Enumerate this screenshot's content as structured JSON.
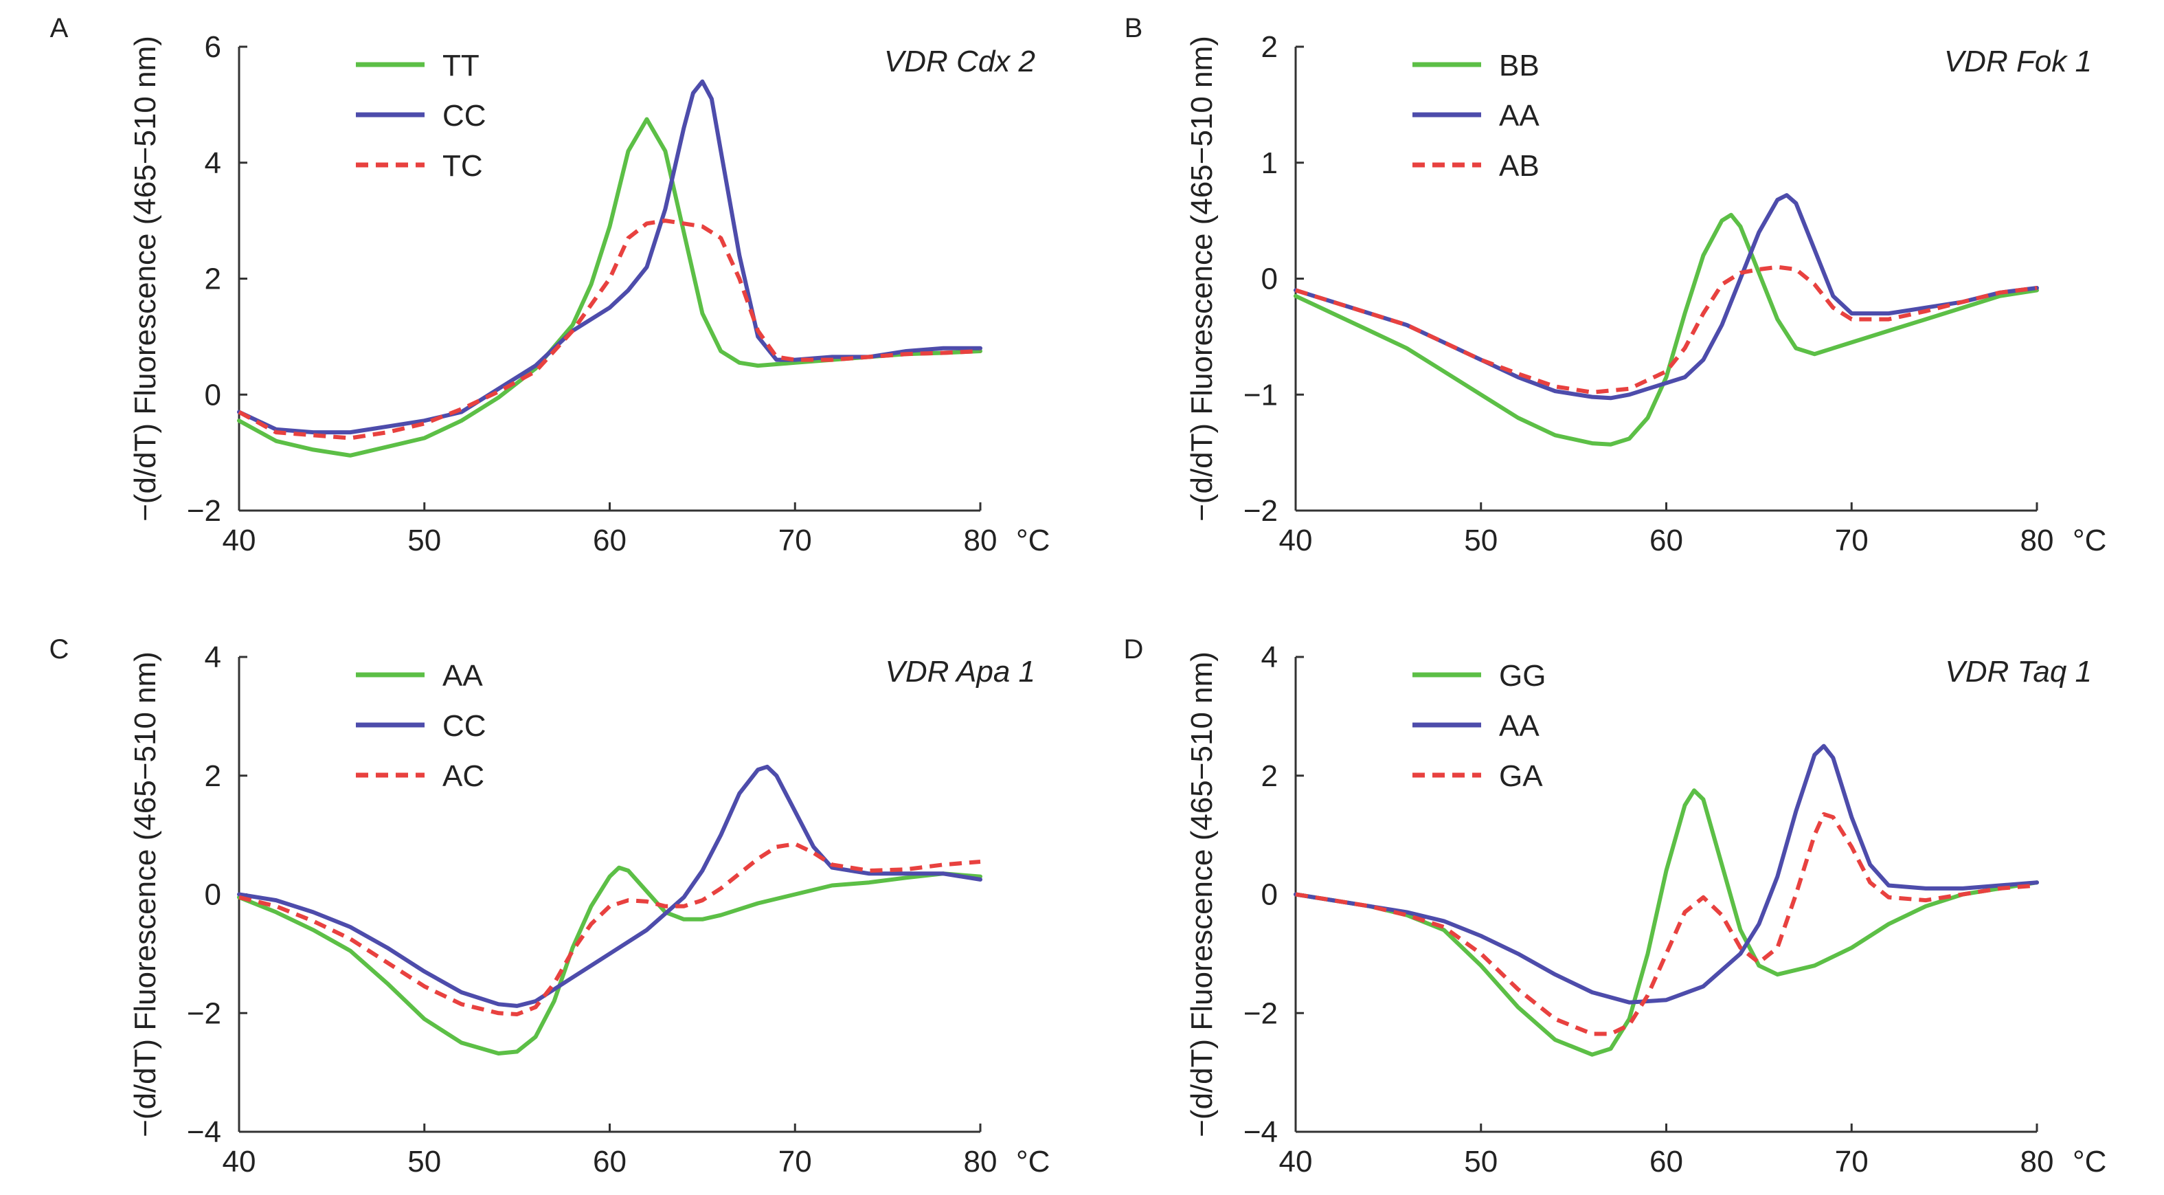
{
  "colors": {
    "green": "#5cbf46",
    "blue": "#4d4cab",
    "red": "#e8413f",
    "axis": "#333333"
  },
  "chart_data": [
    {
      "panel": "A",
      "type": "line",
      "annotation": "VDR Cdx 2",
      "xlabel": "°C",
      "ylabel": "−(d/dT) Fluorescence (465−510 nm)",
      "xlim": [
        40,
        80
      ],
      "ylim": [
        -2,
        6
      ],
      "xticks": [
        40,
        50,
        60,
        70,
        80
      ],
      "yticks": [
        -2,
        0,
        2,
        4,
        6
      ],
      "legend_position": "top-left",
      "series": [
        {
          "name": "TT",
          "color": "green",
          "dashed": false,
          "x": [
            40,
            42,
            44,
            46,
            48,
            50,
            52,
            54,
            56,
            58,
            59,
            60,
            61,
            62,
            63,
            64,
            65,
            66,
            67,
            68,
            70,
            72,
            74,
            76,
            78,
            80
          ],
          "y": [
            -0.45,
            -0.8,
            -0.95,
            -1.05,
            -0.9,
            -0.75,
            -0.45,
            -0.05,
            0.45,
            1.2,
            1.9,
            2.9,
            4.2,
            4.75,
            4.2,
            2.8,
            1.4,
            0.75,
            0.55,
            0.5,
            0.55,
            0.6,
            0.65,
            0.7,
            0.72,
            0.75
          ]
        },
        {
          "name": "CC",
          "color": "blue",
          "dashed": false,
          "x": [
            40,
            42,
            44,
            46,
            48,
            50,
            52,
            54,
            56,
            58,
            60,
            61,
            62,
            63,
            64,
            64.5,
            65,
            65.5,
            66,
            67,
            68,
            69,
            70,
            72,
            74,
            76,
            78,
            80
          ],
          "y": [
            -0.3,
            -0.6,
            -0.65,
            -0.65,
            -0.55,
            -0.45,
            -0.3,
            0.1,
            0.5,
            1.1,
            1.5,
            1.8,
            2.2,
            3.2,
            4.6,
            5.2,
            5.4,
            5.1,
            4.2,
            2.4,
            1.0,
            0.6,
            0.6,
            0.65,
            0.65,
            0.75,
            0.8,
            0.8
          ]
        },
        {
          "name": "TC",
          "color": "red",
          "dashed": true,
          "x": [
            40,
            42,
            44,
            46,
            48,
            50,
            52,
            54,
            56,
            58,
            60,
            61,
            62,
            63,
            64,
            65,
            66,
            67,
            68,
            69,
            70,
            72,
            74,
            76,
            78,
            80
          ],
          "y": [
            -0.3,
            -0.65,
            -0.7,
            -0.75,
            -0.65,
            -0.5,
            -0.25,
            0.05,
            0.4,
            1.1,
            2.0,
            2.7,
            2.95,
            3.0,
            2.95,
            2.9,
            2.7,
            2.0,
            1.1,
            0.65,
            0.6,
            0.6,
            0.65,
            0.7,
            0.72,
            0.75
          ]
        }
      ]
    },
    {
      "panel": "B",
      "type": "line",
      "annotation": "VDR Fok 1",
      "xlabel": "°C",
      "ylabel": "−(d/dT) Fluorescence (465−510 nm)",
      "xlim": [
        40,
        80
      ],
      "ylim": [
        -2,
        2
      ],
      "xticks": [
        40,
        50,
        60,
        70,
        80
      ],
      "yticks": [
        -2,
        -1,
        0,
        1,
        2
      ],
      "legend_position": "top-left",
      "series": [
        {
          "name": "BB",
          "color": "green",
          "dashed": false,
          "x": [
            40,
            42,
            44,
            46,
            48,
            50,
            52,
            54,
            56,
            57,
            58,
            59,
            60,
            61,
            62,
            63,
            63.5,
            64,
            65,
            66,
            67,
            68,
            70,
            72,
            74,
            76,
            78,
            80
          ],
          "y": [
            -0.15,
            -0.3,
            -0.45,
            -0.6,
            -0.8,
            -1.0,
            -1.2,
            -1.35,
            -1.42,
            -1.43,
            -1.38,
            -1.2,
            -0.85,
            -0.3,
            0.2,
            0.5,
            0.55,
            0.45,
            0.05,
            -0.35,
            -0.6,
            -0.65,
            -0.55,
            -0.45,
            -0.35,
            -0.25,
            -0.15,
            -0.1
          ]
        },
        {
          "name": "AA",
          "color": "blue",
          "dashed": false,
          "x": [
            40,
            42,
            44,
            46,
            48,
            50,
            52,
            54,
            56,
            57,
            58,
            59,
            60,
            61,
            62,
            63,
            64,
            65,
            66,
            66.5,
            67,
            68,
            69,
            70,
            72,
            74,
            76,
            78,
            80
          ],
          "y": [
            -0.1,
            -0.2,
            -0.3,
            -0.4,
            -0.55,
            -0.7,
            -0.85,
            -0.97,
            -1.02,
            -1.03,
            -1.0,
            -0.95,
            -0.9,
            -0.85,
            -0.7,
            -0.4,
            0.0,
            0.4,
            0.68,
            0.72,
            0.65,
            0.25,
            -0.15,
            -0.3,
            -0.3,
            -0.25,
            -0.2,
            -0.12,
            -0.08
          ]
        },
        {
          "name": "AB",
          "color": "red",
          "dashed": true,
          "x": [
            40,
            42,
            44,
            46,
            48,
            50,
            52,
            54,
            56,
            58,
            60,
            61,
            62,
            63,
            64,
            65,
            66,
            67,
            68,
            69,
            70,
            72,
            74,
            76,
            78,
            80
          ],
          "y": [
            -0.1,
            -0.2,
            -0.3,
            -0.4,
            -0.55,
            -0.7,
            -0.82,
            -0.93,
            -0.98,
            -0.95,
            -0.8,
            -0.6,
            -0.3,
            -0.05,
            0.05,
            0.08,
            0.1,
            0.08,
            -0.05,
            -0.25,
            -0.35,
            -0.35,
            -0.28,
            -0.2,
            -0.12,
            -0.08
          ]
        }
      ]
    },
    {
      "panel": "C",
      "type": "line",
      "annotation": "VDR Apa 1",
      "xlabel": "°C",
      "ylabel": "−(d/dT) Fluorescence (465−510 nm)",
      "xlim": [
        40,
        80
      ],
      "ylim": [
        -4,
        4
      ],
      "xticks": [
        40,
        50,
        60,
        70,
        80
      ],
      "yticks": [
        -4,
        -2,
        0,
        2,
        4
      ],
      "legend_position": "top-left",
      "series": [
        {
          "name": "AA",
          "color": "green",
          "dashed": false,
          "x": [
            40,
            42,
            44,
            46,
            48,
            50,
            52,
            54,
            55,
            56,
            57,
            58,
            59,
            60,
            60.5,
            61,
            62,
            63,
            64,
            65,
            66,
            68,
            70,
            72,
            74,
            76,
            78,
            80
          ],
          "y": [
            -0.05,
            -0.3,
            -0.6,
            -0.95,
            -1.5,
            -2.1,
            -2.5,
            -2.68,
            -2.65,
            -2.4,
            -1.8,
            -0.9,
            -0.2,
            0.3,
            0.45,
            0.4,
            0.05,
            -0.3,
            -0.42,
            -0.42,
            -0.35,
            -0.15,
            0.0,
            0.15,
            0.2,
            0.28,
            0.35,
            0.3
          ]
        },
        {
          "name": "CC",
          "color": "blue",
          "dashed": false,
          "x": [
            40,
            42,
            44,
            46,
            48,
            50,
            52,
            54,
            55,
            56,
            58,
            60,
            62,
            64,
            65,
            66,
            67,
            68,
            68.5,
            69,
            70,
            71,
            72,
            74,
            76,
            78,
            80
          ],
          "y": [
            0.0,
            -0.1,
            -0.3,
            -0.55,
            -0.9,
            -1.3,
            -1.65,
            -1.85,
            -1.88,
            -1.8,
            -1.4,
            -1.0,
            -0.6,
            -0.05,
            0.4,
            1.0,
            1.7,
            2.1,
            2.15,
            2.0,
            1.4,
            0.8,
            0.45,
            0.35,
            0.35,
            0.35,
            0.25
          ]
        },
        {
          "name": "AC",
          "color": "red",
          "dashed": true,
          "x": [
            40,
            42,
            44,
            46,
            48,
            50,
            52,
            54,
            55,
            56,
            57,
            58,
            59,
            60,
            61,
            62,
            63,
            64,
            65,
            66,
            67,
            68,
            69,
            70,
            71,
            72,
            74,
            76,
            78,
            80
          ],
          "y": [
            -0.05,
            -0.2,
            -0.45,
            -0.75,
            -1.15,
            -1.55,
            -1.85,
            -2.0,
            -2.02,
            -1.9,
            -1.5,
            -0.95,
            -0.5,
            -0.2,
            -0.1,
            -0.12,
            -0.2,
            -0.2,
            -0.1,
            0.1,
            0.35,
            0.6,
            0.8,
            0.85,
            0.7,
            0.5,
            0.4,
            0.42,
            0.5,
            0.55
          ]
        }
      ]
    },
    {
      "panel": "D",
      "type": "line",
      "annotation": "VDR Taq 1",
      "xlabel": "°C",
      "ylabel": "−(d/dT) Fluorescence (465−510 nm)",
      "xlim": [
        40,
        80
      ],
      "ylim": [
        -4,
        4
      ],
      "xticks": [
        40,
        50,
        60,
        70,
        80
      ],
      "yticks": [
        -4,
        -2,
        0,
        2,
        4
      ],
      "legend_position": "top-left",
      "series": [
        {
          "name": "GG",
          "color": "green",
          "dashed": false,
          "x": [
            40,
            42,
            44,
            46,
            48,
            50,
            52,
            54,
            56,
            57,
            58,
            59,
            60,
            61,
            61.5,
            62,
            63,
            64,
            65,
            66,
            68,
            70,
            72,
            74,
            76,
            78,
            80
          ],
          "y": [
            0.0,
            -0.1,
            -0.2,
            -0.35,
            -0.6,
            -1.2,
            -1.9,
            -2.45,
            -2.7,
            -2.6,
            -2.1,
            -1.0,
            0.4,
            1.5,
            1.75,
            1.6,
            0.5,
            -0.6,
            -1.2,
            -1.35,
            -1.2,
            -0.9,
            -0.5,
            -0.2,
            0.0,
            0.1,
            0.2
          ]
        },
        {
          "name": "AA",
          "color": "blue",
          "dashed": false,
          "x": [
            40,
            42,
            44,
            46,
            48,
            50,
            52,
            54,
            56,
            58,
            60,
            62,
            64,
            65,
            66,
            67,
            68,
            68.5,
            69,
            70,
            71,
            72,
            74,
            76,
            78,
            80
          ],
          "y": [
            0.0,
            -0.1,
            -0.2,
            -0.3,
            -0.45,
            -0.7,
            -1.0,
            -1.35,
            -1.65,
            -1.82,
            -1.78,
            -1.55,
            -1.0,
            -0.5,
            0.3,
            1.4,
            2.35,
            2.5,
            2.3,
            1.3,
            0.5,
            0.15,
            0.1,
            0.1,
            0.15,
            0.2
          ]
        },
        {
          "name": "GA",
          "color": "red",
          "dashed": true,
          "x": [
            40,
            42,
            44,
            46,
            48,
            50,
            52,
            54,
            56,
            57,
            58,
            59,
            60,
            61,
            62,
            63,
            64,
            65,
            66,
            67,
            68,
            68.5,
            69,
            70,
            71,
            72,
            74,
            76,
            78,
            80
          ],
          "y": [
            0.0,
            -0.1,
            -0.2,
            -0.35,
            -0.55,
            -1.0,
            -1.6,
            -2.1,
            -2.35,
            -2.35,
            -2.2,
            -1.7,
            -1.0,
            -0.3,
            -0.05,
            -0.35,
            -0.9,
            -1.15,
            -0.9,
            0.0,
            1.0,
            1.35,
            1.3,
            0.8,
            0.2,
            -0.05,
            -0.1,
            0.0,
            0.1,
            0.15
          ]
        }
      ]
    }
  ]
}
